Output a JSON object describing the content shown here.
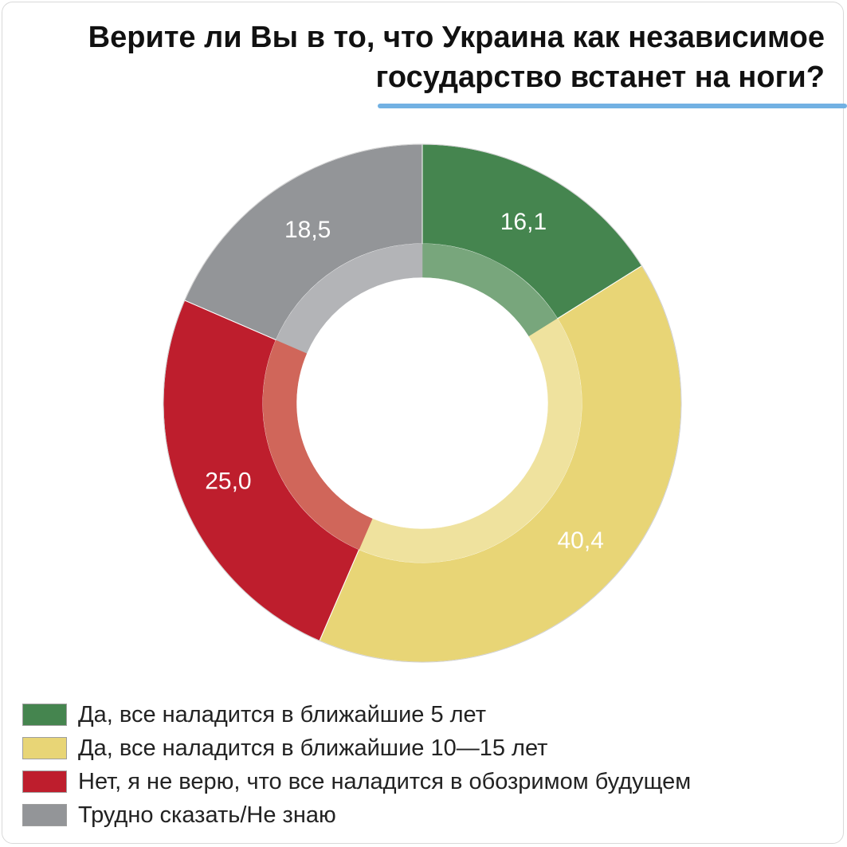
{
  "title": "Верите ли Вы в то, что Украина как независимое государство встанет на ноги?",
  "chart_data": {
    "type": "pie",
    "title": "Верите ли Вы в то, что Украина как независимое государство встанет на ноги?",
    "categories": [
      "Да, все наладится в ближайшие 5 лет",
      "Да, все наладится в ближайшие 10—15 лет",
      "Нет, я не верю, что все наладится в обозримом будущем",
      "Трудно сказать/Не знаю"
    ],
    "values": [
      16.1,
      40.4,
      25.0,
      18.5
    ],
    "value_labels": [
      "16,1",
      "40,4",
      "25,0",
      "18,5"
    ],
    "colors": [
      "#45854f",
      "#e8d576",
      "#be1e2d",
      "#939598"
    ],
    "inner_colors": [
      "#78a67c",
      "#efe29e",
      "#d0665a",
      "#b3b4b7"
    ],
    "legend_position": "bottom-left"
  },
  "legend": {
    "items": [
      {
        "label": "Да, все наладится в ближайшие 5 лет",
        "color": "#45854f"
      },
      {
        "label": "Да, все наладится в ближайшие 10—15 лет",
        "color": "#e8d576"
      },
      {
        "label": "Нет, я не верю, что все наладится в обозримом будущем",
        "color": "#be1e2d"
      },
      {
        "label": "Трудно сказать/Не знаю",
        "color": "#939598"
      }
    ]
  }
}
